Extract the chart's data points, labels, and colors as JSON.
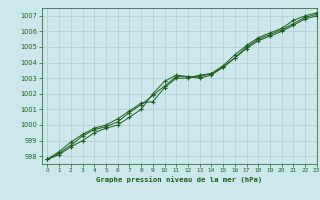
{
  "title": "Graphe pression niveau de la mer (hPa)",
  "background_color": "#cde8ec",
  "grid_color": "#aecdd2",
  "line_color": "#1a5e1a",
  "marker_color": "#1a5e1a",
  "xlim": [
    -0.5,
    23
  ],
  "ylim": [
    997.5,
    1007.5
  ],
  "yticks": [
    998,
    999,
    1000,
    1001,
    1002,
    1003,
    1004,
    1005,
    1006,
    1007
  ],
  "xticks": [
    0,
    1,
    2,
    3,
    4,
    5,
    6,
    7,
    8,
    9,
    10,
    11,
    12,
    13,
    14,
    15,
    16,
    17,
    18,
    19,
    20,
    21,
    22,
    23
  ],
  "series1_x": [
    0,
    1,
    2,
    3,
    4,
    5,
    6,
    7,
    8,
    9,
    10,
    11,
    12,
    13,
    14,
    15,
    16,
    17,
    18,
    19,
    20,
    21,
    22,
    23
  ],
  "series1_y": [
    997.8,
    998.2,
    998.7,
    999.3,
    999.7,
    999.9,
    1000.2,
    1000.8,
    1001.3,
    1001.9,
    1002.5,
    1003.1,
    1003.1,
    1003.1,
    1003.3,
    1003.7,
    1004.3,
    1005.0,
    1005.5,
    1005.8,
    1006.1,
    1006.5,
    1006.9,
    1007.1
  ],
  "series2_x": [
    0,
    1,
    2,
    3,
    4,
    5,
    6,
    7,
    8,
    9,
    10,
    11,
    12,
    13,
    14,
    15,
    16,
    17,
    18,
    19,
    20,
    21,
    22,
    23
  ],
  "series2_y": [
    997.8,
    998.3,
    998.9,
    999.4,
    999.8,
    1000.0,
    1000.4,
    1000.9,
    1001.4,
    1001.5,
    1002.4,
    1003.0,
    1003.0,
    1003.2,
    1003.3,
    1003.8,
    1004.5,
    1005.1,
    1005.6,
    1005.9,
    1006.2,
    1006.7,
    1007.0,
    1007.2
  ],
  "series3_x": [
    0,
    1,
    2,
    3,
    4,
    5,
    6,
    7,
    8,
    9,
    10,
    11,
    12,
    13,
    14,
    15,
    16,
    17,
    18,
    19,
    20,
    21,
    22,
    23
  ],
  "series3_y": [
    997.8,
    998.1,
    998.6,
    999.0,
    999.5,
    999.8,
    1000.0,
    1000.5,
    1001.0,
    1002.0,
    1002.8,
    1003.2,
    1003.1,
    1003.0,
    1003.2,
    1003.7,
    1004.3,
    1004.9,
    1005.4,
    1005.7,
    1006.0,
    1006.4,
    1006.8,
    1007.0
  ]
}
